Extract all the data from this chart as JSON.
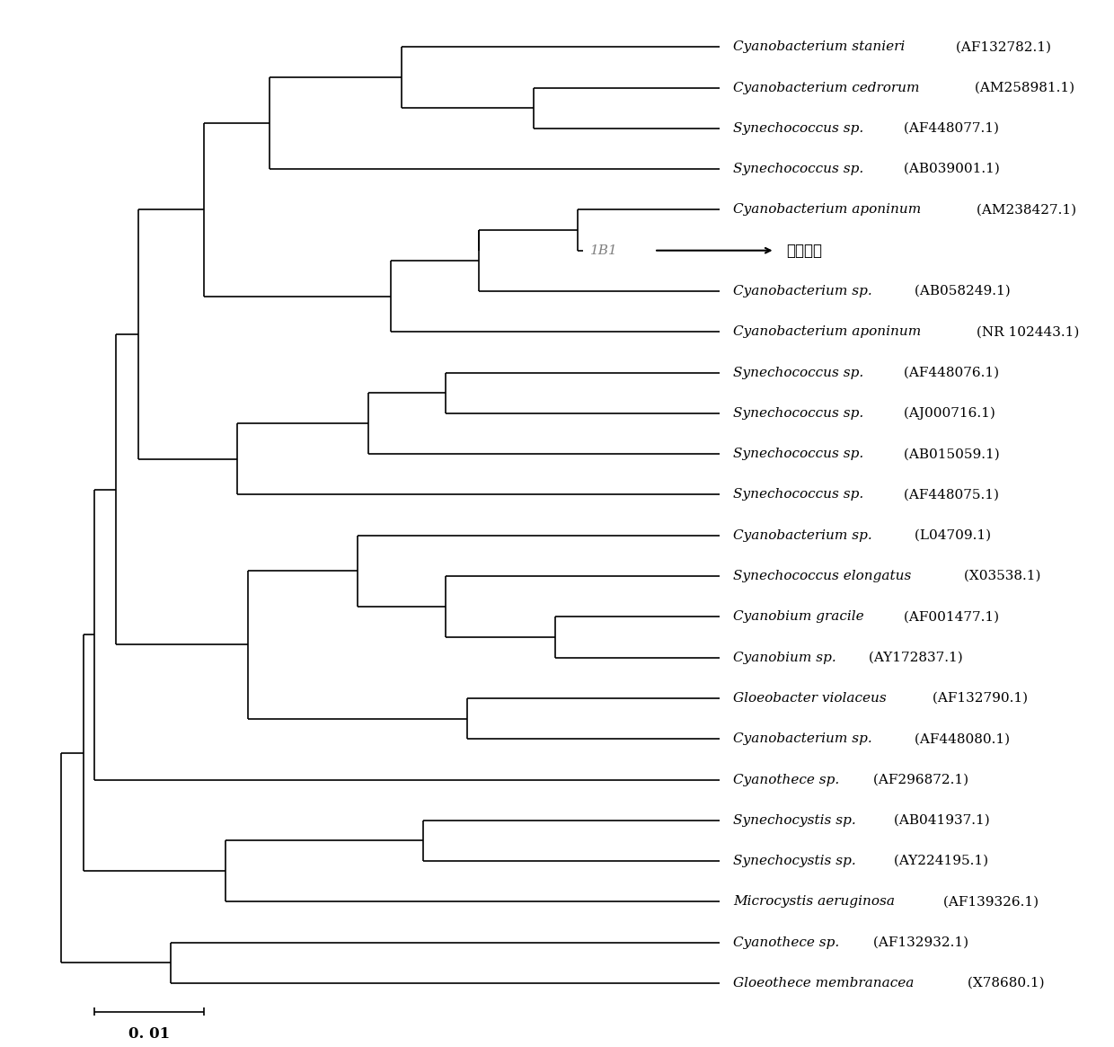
{
  "taxa": [
    "Cyanobacterium stanieri (AF132782.1)",
    "Cyanobacterium cedrorum (AM258981.1)",
    "Synechococcus sp. (AF448077.1)",
    "Synechococcus sp. (AB039001.1)",
    "Cyanobacterium aponinum (AM238427.1)",
    "1B1",
    "Cyanobacterium sp. (AB058249.1)",
    "Cyanobacterium aponinum (NR 102443.1)",
    "Synechococcus sp. (AF448076.1)",
    "Synechococcus sp. (AJ000716.1)",
    "Synechococcus sp. (AB015059.1)",
    "Synechococcus sp. (AF448075.1)",
    "Cyanobacterium sp. (L04709.1)",
    "Synechococcus elongatus (X03538.1)",
    "Cyanobium gracile (AF001477.1)",
    "Cyanobium sp. (AY172837.1)",
    "Gloeobacter violaceus (AF132790.1)",
    "Cyanobacterium sp. (AF448080.1)",
    "Cyanothece sp. (AF296872.1)",
    "Synechocystis sp. (AB041937.1)",
    "Synechocystis sp. (AY224195.1)",
    "Microcystis aeruginosa (AF139326.1)",
    "Cyanothece sp. (AF132932.1)",
    "Gloeothece membranacea (X78680.1)"
  ],
  "italic_parts": [
    "Cyanobacterium stanieri",
    "Cyanobacterium cedrorum",
    "Synechococcus",
    "Synechococcus",
    "Cyanobacterium aponinum",
    "1B1",
    "Cyanobacterium",
    "Cyanobacterium aponinum",
    "Synechococcus",
    "Synechococcus",
    "Synechococcus",
    "Synechococcus",
    "Cyanobacterium",
    "Synechococcus elongatus",
    "Cyanobium gracile",
    "Cyanobium",
    "Gloeobacter violaceus",
    "Cyanobacterium",
    "Cyanothece",
    "Synechocystis",
    "Synechocystis",
    "Microcystis aeruginosa",
    "Cyanothece",
    "Gloeothece membranacea"
  ],
  "annotation_label": "目标藻株",
  "annotation_taxon": "1B1",
  "scale_bar_value": "0. 01",
  "bg_color": "#ffffff",
  "line_color": "#000000",
  "font_size": 11,
  "title_font_size": 12
}
